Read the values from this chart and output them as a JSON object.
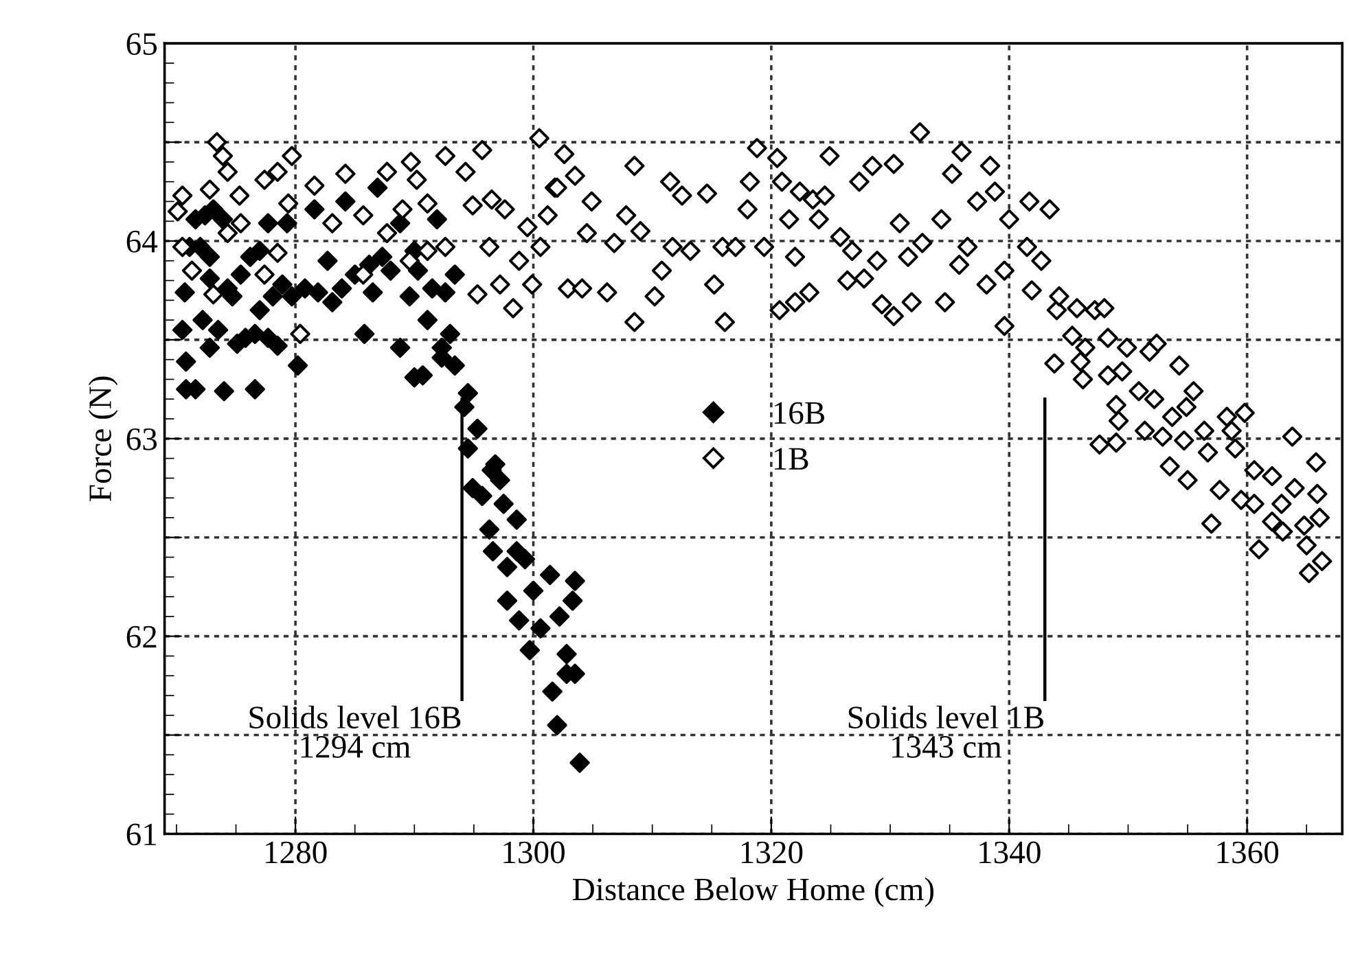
{
  "chart_data": {
    "type": "scatter",
    "xlabel": "Distance Below Home (cm)",
    "ylabel": "Force (N)",
    "xlim": [
      1269,
      1368
    ],
    "ylim": [
      61,
      65
    ],
    "xticks": [
      1280,
      1300,
      1320,
      1340,
      1360
    ],
    "yticks": [
      61,
      {
        "value": 61.5,
        "label": null
      },
      62,
      {
        "value": 62.5,
        "label": null
      },
      63,
      {
        "value": 63.5,
        "label": null
      },
      64,
      {
        "value": 64.5,
        "label": null
      },
      65
    ],
    "grid": true,
    "legend": "center",
    "marker": "diamond",
    "ref_lines": [
      {
        "axis": "x",
        "value": 1294,
        "label": "Solids level 16B\n1294 cm"
      },
      {
        "axis": "x",
        "value": 1343,
        "label": "Solids level 1B\n1343 cm"
      }
    ],
    "series": [
      {
        "name": "16B",
        "color": "#000000",
        "x": [
          1303.9,
          1302.0,
          1302.8,
          1303.5,
          1301.6,
          1302.8,
          1303.5,
          1303.3,
          1302.2,
          1301.4,
          1300.6,
          1299.7,
          1300.0,
          1299.3,
          1298.8,
          1297.8,
          1298.6,
          1297.8,
          1296.6,
          1296.3,
          1298.6,
          1297.5,
          1295.7,
          1294.9,
          1297.2,
          1296.5,
          1296.8,
          1294.5,
          1295.3,
          1294.2,
          1294.5,
          1293.4,
          1292.3,
          1290.0,
          1290.7,
          1280.2,
          1276.6,
          1274.0,
          1271.6,
          1270.8,
          1270.8,
          1270.5,
          1272.8,
          1272.2,
          1270.7,
          1271.1,
          1271.6,
          1272.4,
          1273.1,
          1273.9,
          1272.0,
          1272.8,
          1272.8,
          1274.3,
          1274.7,
          1273.5,
          1275.1,
          1275.8,
          1276.6,
          1275.4,
          1276.2,
          1277.0,
          1277.7,
          1277.0,
          1277.7,
          1278.5,
          1278.1,
          1279.3,
          1278.9,
          1279.7,
          1280.8,
          1281.6,
          1281.9,
          1282.7,
          1283.1,
          1283.9,
          1284.2,
          1285.0,
          1285.8,
          1286.2,
          1286.5,
          1286.9,
          1287.3,
          1288.0,
          1288.8,
          1289.6,
          1290.0,
          1290.3,
          1291.1,
          1291.9,
          1291.5,
          1292.6,
          1293.0,
          1293.4,
          1292.3,
          1288.8
        ],
        "values": [
          61.36,
          61.55,
          61.81,
          61.81,
          61.72,
          61.91,
          62.28,
          62.18,
          62.1,
          62.31,
          62.04,
          61.93,
          62.23,
          62.39,
          62.08,
          62.18,
          62.43,
          62.35,
          62.43,
          62.54,
          62.59,
          62.67,
          62.71,
          62.75,
          62.79,
          62.84,
          62.87,
          62.95,
          63.05,
          63.16,
          63.23,
          63.37,
          63.41,
          63.31,
          63.32,
          63.37,
          63.25,
          63.24,
          63.25,
          63.25,
          63.39,
          63.55,
          63.46,
          63.6,
          63.74,
          63.97,
          64.11,
          64.13,
          64.16,
          64.11,
          63.97,
          63.92,
          63.81,
          63.76,
          63.72,
          63.55,
          63.48,
          63.51,
          63.53,
          63.83,
          63.92,
          63.95,
          64.09,
          63.65,
          63.51,
          63.47,
          63.72,
          64.09,
          63.78,
          63.72,
          63.76,
          64.16,
          63.74,
          63.9,
          63.69,
          63.76,
          64.2,
          63.83,
          63.53,
          63.88,
          63.74,
          64.27,
          63.92,
          63.85,
          63.46,
          63.72,
          63.95,
          63.85,
          63.6,
          64.11,
          63.76,
          63.74,
          63.53,
          63.83,
          63.46,
          64.09
        ]
      },
      {
        "name": "1B",
        "color": "#000000",
        "x": [
          1270.1,
          1270.5,
          1270.5,
          1271.3,
          1273.1,
          1272.8,
          1273.4,
          1273.9,
          1274.3,
          1275.3,
          1275.4,
          1274.3,
          1277.4,
          1278.5,
          1279.7,
          1279.4,
          1277.4,
          1278.5,
          1280.4,
          1281.6,
          1284.2,
          1283.1,
          1285.7,
          1287.7,
          1289.7,
          1290.2,
          1292.6,
          1294.3,
          1295.7,
          1294.9,
          1296.5,
          1297.6,
          1289.0,
          1291.1,
          1287.7,
          1292.6,
          1296.3,
          1299.5,
          1297.2,
          1298.3,
          1295.3,
          1299.9,
          1298.8,
          1300.6,
          1301.8,
          1291.1,
          1285.7,
          1289.6,
          1300.5,
          1302.6,
          1303.5,
          1302.0,
          1308.5,
          1302.9,
          1304.1,
          1308.5,
          1306.2,
          1310.2,
          1311.5,
          1314.6,
          1316.1,
          1315.2,
          1318.8,
          1318.2,
          1320.5,
          1320.9,
          1320.7,
          1322.0,
          1323.2,
          1323.5,
          1322.4,
          1324.9,
          1324.5,
          1326.4,
          1327.8,
          1328.5,
          1330.3,
          1329.3,
          1330.3,
          1331.8,
          1332.5,
          1334.6,
          1335.2,
          1336.0,
          1338.4,
          1339.6,
          1341.7,
          1343.4,
          1344.0,
          1343.8,
          1301.2,
          1304.9,
          1306.8,
          1309.0,
          1310.8,
          1312.5,
          1313.2,
          1315.9,
          1318.0,
          1319.4,
          1321.5,
          1324.0,
          1325.8,
          1327.4,
          1328.9,
          1330.8,
          1332.7,
          1334.3,
          1336.5,
          1337.3,
          1338.8,
          1340.0,
          1341.5,
          1342.7,
          1339.6,
          1335.8,
          1331.5,
          1326.8,
          1322.0,
          1317.0,
          1311.7,
          1307.8,
          1304.5,
          1338.1,
          1341.9,
          1344.2,
          1345.7,
          1347.2,
          1348.0,
          1345.3,
          1346.4,
          1348.3,
          1349.9,
          1352.4,
          1351.8,
          1354.3,
          1346.0,
          1346.2,
          1348.3,
          1349.5,
          1349.0,
          1350.9,
          1352.2,
          1353.7,
          1355.5,
          1354.9,
          1349.2,
          1351.4,
          1352.9,
          1354.7,
          1347.6,
          1349.0,
          1356.4,
          1358.3,
          1359.8,
          1358.7,
          1356.7,
          1359.0,
          1353.5,
          1355.0,
          1357.7,
          1359.5,
          1360.6,
          1362.1,
          1363.8,
          1365.8,
          1364.0,
          1365.9,
          1360.6,
          1362.1,
          1363.0,
          1364.8,
          1366.1,
          1357.0,
          1361.0,
          1365.0,
          1365.2,
          1366.3,
          1362.9
        ],
        "values": [
          64.15,
          64.23,
          63.97,
          63.85,
          63.73,
          64.26,
          64.5,
          64.43,
          64.35,
          64.23,
          64.09,
          64.04,
          64.31,
          64.35,
          64.43,
          64.19,
          63.83,
          63.94,
          63.53,
          64.28,
          64.34,
          64.09,
          64.13,
          64.35,
          64.4,
          64.31,
          64.43,
          64.35,
          64.46,
          64.18,
          64.21,
          64.16,
          64.16,
          64.19,
          64.04,
          63.97,
          63.97,
          64.07,
          63.78,
          63.66,
          63.73,
          63.78,
          63.9,
          63.97,
          64.27,
          63.95,
          63.83,
          63.9,
          64.52,
          64.44,
          64.33,
          64.27,
          64.38,
          63.76,
          63.76,
          63.59,
          63.74,
          63.72,
          64.3,
          64.24,
          63.59,
          63.78,
          64.47,
          64.3,
          64.42,
          64.3,
          63.65,
          63.69,
          63.74,
          64.21,
          64.25,
          64.43,
          64.23,
          63.8,
          63.81,
          64.38,
          64.39,
          63.68,
          63.62,
          63.69,
          64.55,
          63.69,
          64.34,
          64.45,
          64.38,
          63.57,
          64.2,
          64.16,
          63.65,
          63.38,
          64.13,
          64.2,
          63.99,
          64.05,
          63.85,
          64.23,
          63.95,
          63.97,
          64.16,
          63.97,
          64.11,
          64.11,
          64.02,
          64.3,
          63.9,
          64.09,
          63.99,
          64.11,
          63.97,
          64.2,
          64.25,
          64.11,
          63.97,
          63.9,
          63.85,
          63.88,
          63.92,
          63.95,
          63.92,
          63.97,
          63.97,
          64.13,
          64.04,
          63.78,
          63.75,
          63.72,
          63.66,
          63.65,
          63.66,
          63.52,
          63.46,
          63.51,
          63.46,
          63.48,
          63.44,
          63.37,
          63.39,
          63.3,
          63.32,
          63.34,
          63.17,
          63.24,
          63.2,
          63.11,
          63.24,
          63.16,
          63.09,
          63.04,
          63.01,
          62.99,
          62.97,
          62.98,
          63.04,
          63.11,
          63.13,
          63.04,
          62.93,
          62.95,
          62.86,
          62.79,
          62.74,
          62.69,
          62.84,
          62.81,
          63.01,
          62.88,
          62.75,
          62.72,
          62.67,
          62.58,
          62.53,
          62.56,
          62.6,
          62.57,
          62.44,
          62.46,
          62.32,
          62.38,
          62.67
        ]
      }
    ]
  }
}
